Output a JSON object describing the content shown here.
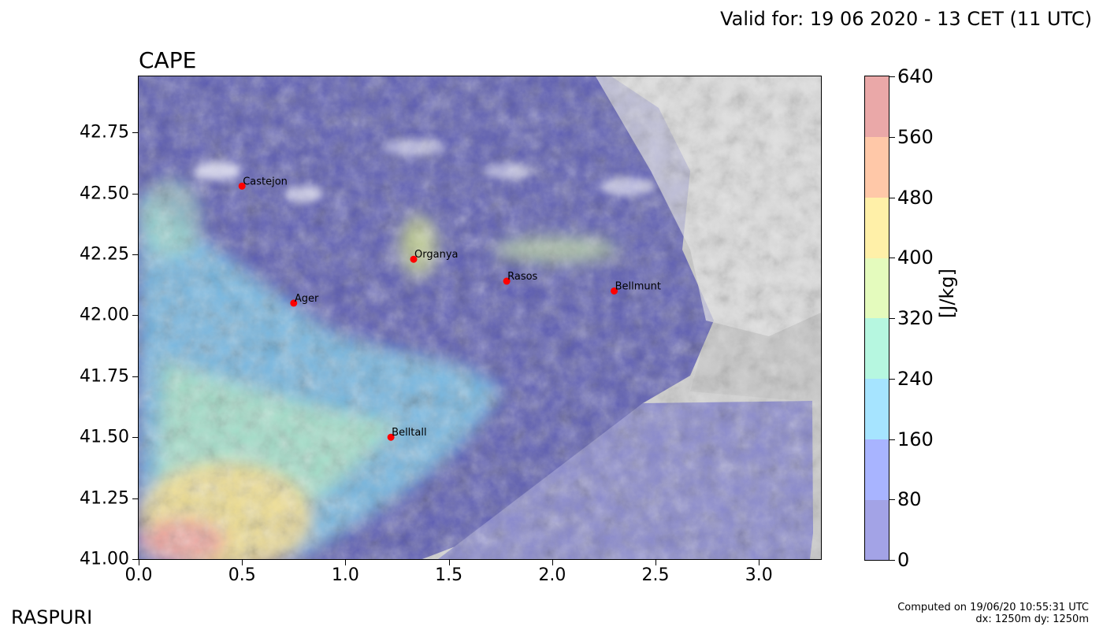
{
  "header": {
    "valid_text": "Valid for: 19 06 2020 - 13 CET (11 UTC)"
  },
  "map": {
    "title": "CAPE",
    "x_ticks": [
      "0.0",
      "0.5",
      "1.0",
      "1.5",
      "2.0",
      "2.5",
      "3.0"
    ],
    "y_ticks": [
      "42.75",
      "42.50",
      "42.25",
      "42.00",
      "41.75",
      "41.50",
      "41.25",
      "41.00"
    ],
    "x_range": [
      0.0,
      3.3
    ],
    "y_range": [
      41.0,
      42.98
    ],
    "places": [
      {
        "name": "Castejon",
        "lon": 0.5,
        "lat": 42.53
      },
      {
        "name": "Organya",
        "lon": 1.33,
        "lat": 42.23
      },
      {
        "name": "Ager",
        "lon": 0.75,
        "lat": 42.05
      },
      {
        "name": "Rasos",
        "lon": 1.78,
        "lat": 42.14
      },
      {
        "name": "Bellmunt",
        "lon": 2.3,
        "lat": 42.1
      },
      {
        "name": "Belltall",
        "lon": 1.22,
        "lat": 41.5
      }
    ],
    "marker_color": "#ff0000",
    "background_colors": {
      "sea": "#8888cc",
      "terrain": "#6a6ab0",
      "outside": "#d3d3d3"
    }
  },
  "colorbar": {
    "label": "[J/kg]",
    "ticks": [
      "640",
      "560",
      "480",
      "400",
      "320",
      "240",
      "160",
      "80",
      "0"
    ],
    "levels": [
      0,
      80,
      160,
      240,
      320,
      400,
      480,
      560,
      640
    ],
    "colors": [
      "#a3a3e6",
      "#a8b4ff",
      "#a6e4ff",
      "#b6f7e0",
      "#e4fbbd",
      "#fff0a8",
      "#ffc8a8",
      "#eaa8a8"
    ]
  },
  "footer": {
    "brand": "RASPURI",
    "computed_text": "Computed on 19/06/20 10:55:31 UTC",
    "resolution_text": "dx: 1250m dy: 1250m"
  }
}
